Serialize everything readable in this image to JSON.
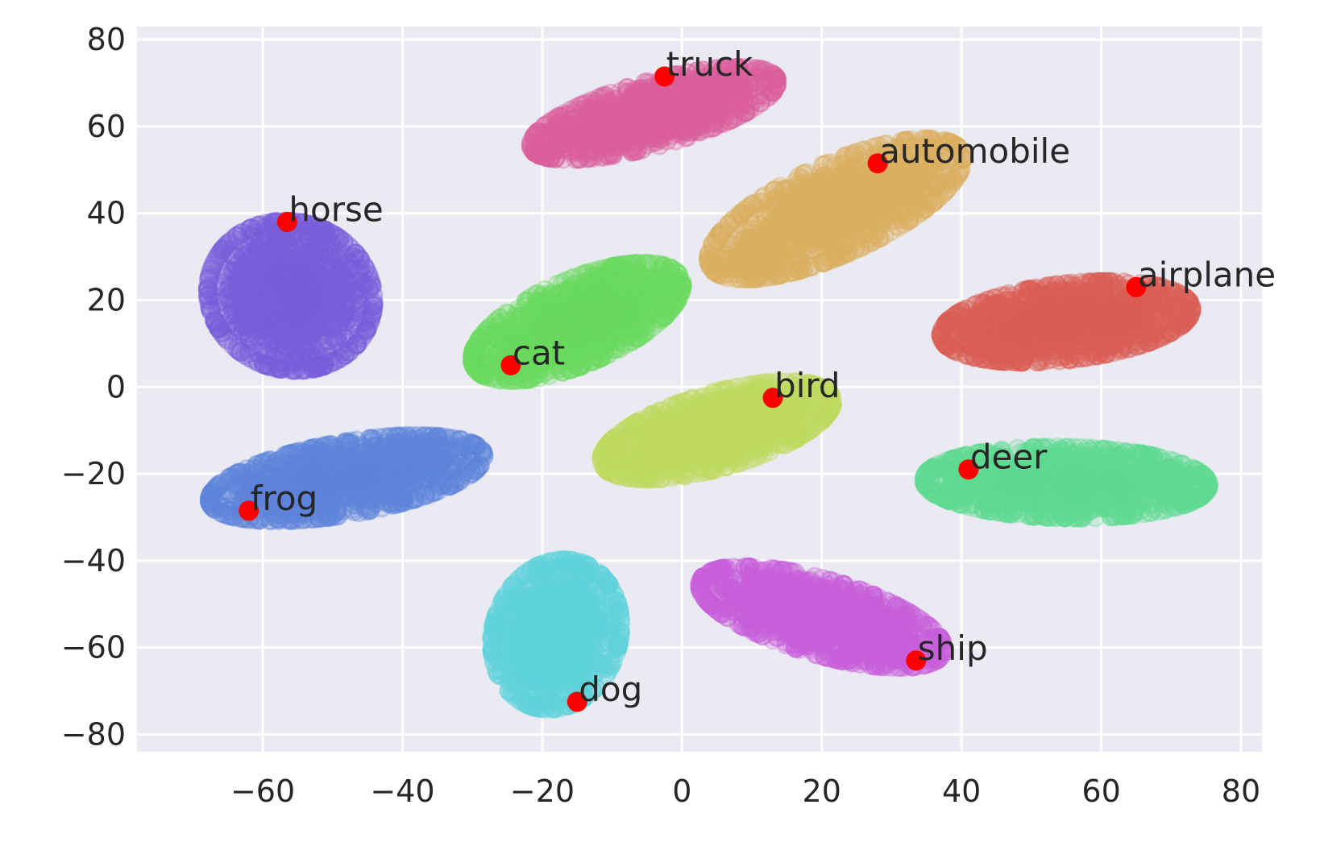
{
  "chart_data": {
    "type": "scatter",
    "title": "",
    "xlabel": "",
    "ylabel": "",
    "xlim": [
      -78,
      83
    ],
    "ylim": [
      -84,
      83
    ],
    "x_ticks": [
      -60,
      -40,
      -20,
      0,
      20,
      40,
      60,
      80
    ],
    "y_ticks": [
      -80,
      -60,
      -40,
      -20,
      0,
      20,
      40,
      60,
      80
    ],
    "x_tick_labels": [
      "−60",
      "−40",
      "−20",
      "0",
      "20",
      "40",
      "60",
      "80"
    ],
    "y_tick_labels": [
      "−80",
      "−60",
      "−40",
      "−20",
      "0",
      "20",
      "40",
      "60",
      "80"
    ],
    "grid": true,
    "background": "#eaeaf2",
    "marker_color": "#ff0000",
    "clusters": [
      {
        "label": "truck",
        "color": "#db5f9d",
        "marker": [
          -2.5,
          71.5
        ],
        "center": [
          -4,
          63
        ],
        "half_axes": [
          18,
          6.5
        ],
        "angle_deg": 26,
        "n": 1100
      },
      {
        "label": "automobile",
        "color": "#dbae5f",
        "marker": [
          28,
          51.5
        ],
        "center": [
          22,
          41
        ],
        "half_axes": [
          21,
          8.5
        ],
        "angle_deg": 40,
        "n": 1200
      },
      {
        "label": "horse",
        "color": "#795fdb",
        "marker": [
          -56.5,
          38
        ],
        "center": [
          -56,
          21
        ],
        "half_axes": [
          11,
          16
        ],
        "angle_deg": 5,
        "n": 1200
      },
      {
        "label": "airplane",
        "color": "#db5f57",
        "marker": [
          65,
          23
        ],
        "center": [
          55,
          15
        ],
        "half_axes": [
          17,
          8
        ],
        "angle_deg": 12,
        "n": 1300
      },
      {
        "label": "cat",
        "color": "#6adb5f",
        "marker": [
          -24.5,
          5
        ],
        "center": [
          -15,
          15
        ],
        "half_axes": [
          17,
          8
        ],
        "angle_deg": 40,
        "n": 1200
      },
      {
        "label": "bird",
        "color": "#bfdb5f",
        "marker": [
          13,
          -2.5
        ],
        "center": [
          5,
          -10
        ],
        "half_axes": [
          17,
          7.5
        ],
        "angle_deg": 28,
        "n": 1200
      },
      {
        "label": "frog",
        "color": "#5f85db",
        "marker": [
          -62,
          -28.5
        ],
        "center": [
          -48,
          -21
        ],
        "half_axes": [
          19,
          7.5
        ],
        "angle_deg": 17,
        "n": 1300
      },
      {
        "label": "deer",
        "color": "#5fdb93",
        "marker": [
          41,
          -19
        ],
        "center": [
          55,
          -22
        ],
        "half_axes": [
          19,
          7.5
        ],
        "angle_deg": -2,
        "n": 1300
      },
      {
        "label": "dog",
        "color": "#5fd3db",
        "marker": [
          -15,
          -72.5
        ],
        "center": [
          -18,
          -57
        ],
        "half_axes": [
          8.5,
          16
        ],
        "angle_deg": -5,
        "n": 1100
      },
      {
        "label": "ship",
        "color": "#c95fdb",
        "marker": [
          33.5,
          -63
        ],
        "center": [
          20,
          -53
        ],
        "half_axes": [
          18,
          7.5
        ],
        "angle_deg": -28,
        "n": 1200
      }
    ]
  }
}
